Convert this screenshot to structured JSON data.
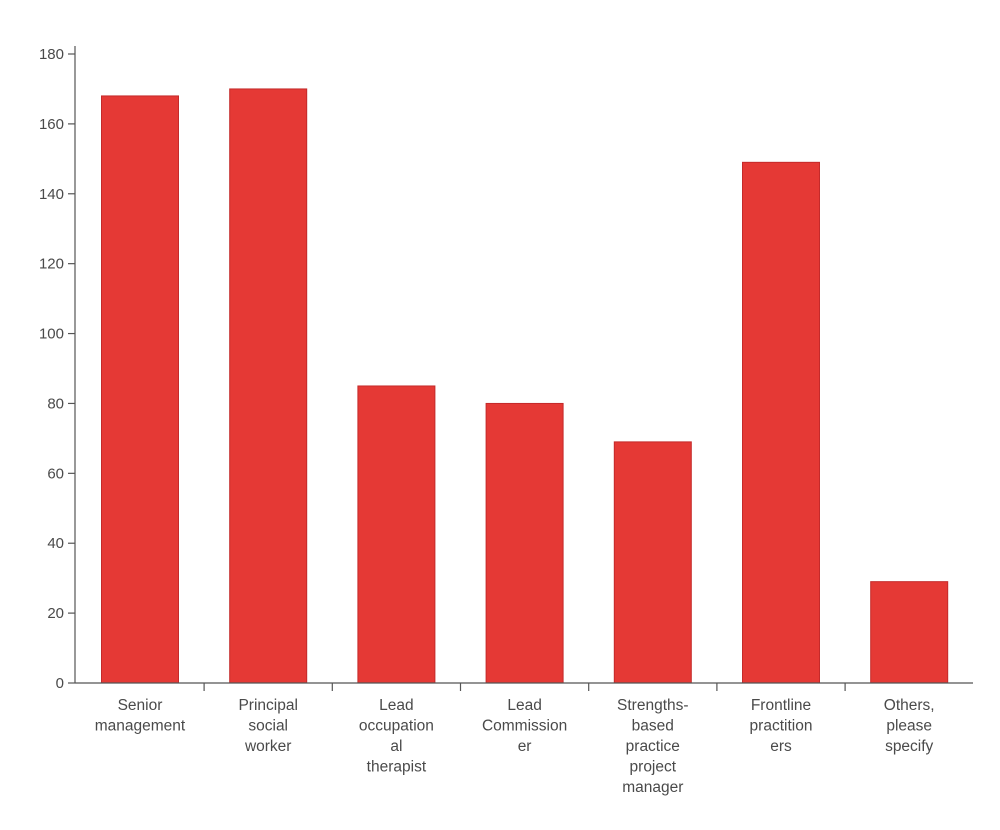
{
  "chart_data": {
    "type": "bar",
    "title": "",
    "xlabel": "",
    "ylabel": "",
    "categories": [
      "Senior management",
      "Principal social worker",
      "Lead occupational therapist",
      "Lead Commissioner",
      "Strengths-based practice project manager",
      "Frontline practitioners",
      "Others, please specify"
    ],
    "category_label_lines": [
      [
        "Senior",
        "management"
      ],
      [
        "Principal",
        "social",
        "worker"
      ],
      [
        "Lead",
        "occupation",
        "al",
        "therapist"
      ],
      [
        "Lead",
        "Commission",
        "er"
      ],
      [
        "Strengths-",
        "based",
        "practice",
        "project",
        "manager"
      ],
      [
        "Frontline",
        "practition",
        "ers"
      ],
      [
        "Others,",
        "please",
        "specify"
      ]
    ],
    "values": [
      168,
      170,
      85,
      80,
      69,
      149,
      29
    ],
    "ylim": [
      0,
      180
    ],
    "yticks": [
      0,
      20,
      40,
      60,
      80,
      100,
      120,
      140,
      160,
      180
    ],
    "grid": false,
    "legend": "none",
    "bar_color": "#e53935"
  }
}
